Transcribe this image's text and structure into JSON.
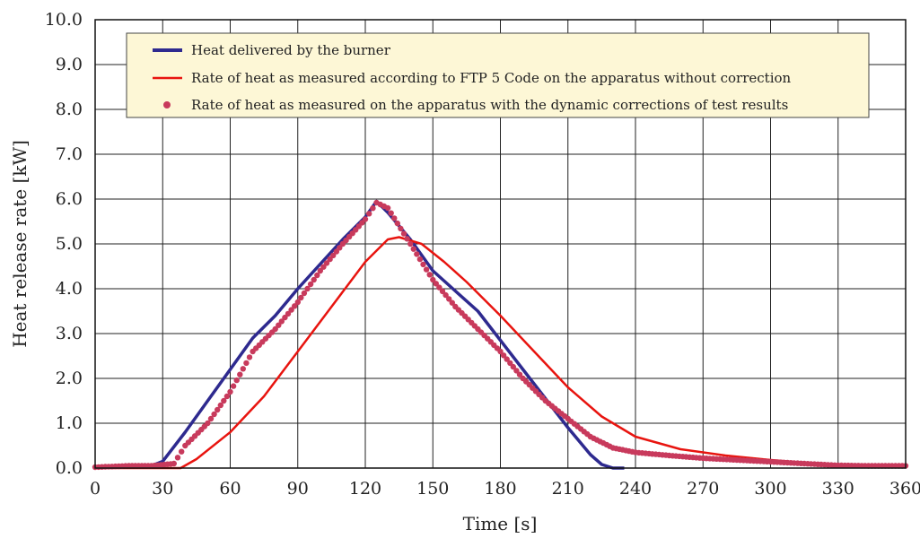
{
  "chart_data": {
    "type": "line",
    "xlabel": "Time [s]",
    "ylabel": "Heat release rate [kW]",
    "xlim": [
      0,
      360
    ],
    "ylim": [
      0,
      10
    ],
    "xticks": [
      "0",
      "30",
      "60",
      "90",
      "120",
      "150",
      "180",
      "210",
      "240",
      "270",
      "300",
      "330",
      "360"
    ],
    "yticks": [
      "0.0",
      "1.0",
      "2.0",
      "3.0",
      "4.0",
      "5.0",
      "6.0",
      "7.0",
      "8.0",
      "9.0",
      "10.0"
    ],
    "grid": true,
    "legend_position": "top",
    "series": [
      {
        "name": "Heat delivered by the burner",
        "style": "line",
        "color": "#2e2a8f",
        "points": [
          [
            0,
            0.02
          ],
          [
            15,
            0.05
          ],
          [
            25,
            0.05
          ],
          [
            30,
            0.15
          ],
          [
            40,
            0.8
          ],
          [
            50,
            1.5
          ],
          [
            60,
            2.2
          ],
          [
            70,
            2.9
          ],
          [
            80,
            3.4
          ],
          [
            90,
            4.0
          ],
          [
            100,
            4.55
          ],
          [
            110,
            5.1
          ],
          [
            120,
            5.6
          ],
          [
            125,
            5.95
          ],
          [
            130,
            5.7
          ],
          [
            140,
            5.1
          ],
          [
            150,
            4.4
          ],
          [
            160,
            3.95
          ],
          [
            170,
            3.5
          ],
          [
            180,
            2.85
          ],
          [
            190,
            2.2
          ],
          [
            200,
            1.55
          ],
          [
            210,
            0.9
          ],
          [
            220,
            0.3
          ],
          [
            225,
            0.08
          ],
          [
            230,
            0.0
          ],
          [
            235,
            0.0
          ]
        ]
      },
      {
        "name": "Rate of heat as measured according to FTP 5 Code on the apparatus without correction",
        "style": "line",
        "color": "#e8140f",
        "points": [
          [
            0,
            0.0
          ],
          [
            30,
            0.0
          ],
          [
            38,
            0.0
          ],
          [
            45,
            0.2
          ],
          [
            60,
            0.8
          ],
          [
            75,
            1.6
          ],
          [
            90,
            2.6
          ],
          [
            105,
            3.6
          ],
          [
            120,
            4.6
          ],
          [
            130,
            5.1
          ],
          [
            135,
            5.15
          ],
          [
            145,
            5.0
          ],
          [
            155,
            4.6
          ],
          [
            165,
            4.15
          ],
          [
            180,
            3.4
          ],
          [
            195,
            2.6
          ],
          [
            210,
            1.8
          ],
          [
            225,
            1.15
          ],
          [
            240,
            0.7
          ],
          [
            260,
            0.42
          ],
          [
            280,
            0.28
          ],
          [
            300,
            0.18
          ],
          [
            320,
            0.1
          ],
          [
            340,
            0.05
          ],
          [
            360,
            0.03
          ]
        ]
      },
      {
        "name": "Rate of heat as measured on the apparatus with the dynamic corrections of test results",
        "style": "markers",
        "color": "#c83a5c",
        "points": [
          [
            0,
            0.02
          ],
          [
            15,
            0.05
          ],
          [
            25,
            0.05
          ],
          [
            35,
            0.1
          ],
          [
            40,
            0.5
          ],
          [
            50,
            1.0
          ],
          [
            60,
            1.7
          ],
          [
            70,
            2.6
          ],
          [
            80,
            3.1
          ],
          [
            90,
            3.7
          ],
          [
            100,
            4.4
          ],
          [
            110,
            5.0
          ],
          [
            120,
            5.55
          ],
          [
            125,
            5.92
          ],
          [
            130,
            5.8
          ],
          [
            140,
            5.0
          ],
          [
            150,
            4.2
          ],
          [
            160,
            3.6
          ],
          [
            170,
            3.1
          ],
          [
            180,
            2.6
          ],
          [
            190,
            2.0
          ],
          [
            200,
            1.5
          ],
          [
            210,
            1.1
          ],
          [
            220,
            0.7
          ],
          [
            230,
            0.45
          ],
          [
            240,
            0.35
          ],
          [
            255,
            0.28
          ],
          [
            270,
            0.22
          ],
          [
            285,
            0.18
          ],
          [
            300,
            0.14
          ],
          [
            315,
            0.1
          ],
          [
            330,
            0.06
          ],
          [
            345,
            0.05
          ],
          [
            360,
            0.05
          ]
        ]
      }
    ]
  }
}
